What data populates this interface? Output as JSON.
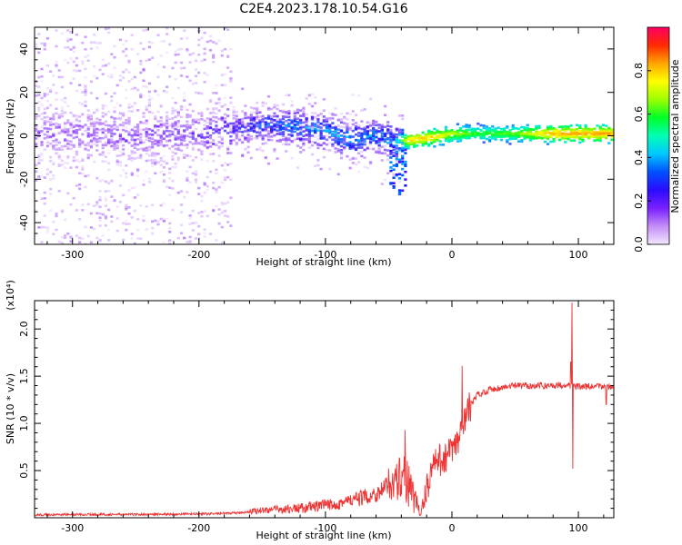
{
  "title": "C2E4.2023.178.10.54.G16",
  "chart_data": [
    {
      "type": "heatmap",
      "xlabel": "Height of straight line (km)",
      "ylabel": "Frequency (Hz)",
      "xlim": [
        -330,
        128
      ],
      "ylim": [
        -50,
        50
      ],
      "xticks": [
        -300,
        -200,
        -100,
        0,
        100
      ],
      "yticks": [
        -40,
        -20,
        0,
        20,
        40
      ],
      "colorbar": {
        "label": "Normalized spectral amplitude",
        "range": [
          0,
          1
        ],
        "ticks": [
          0.0,
          0.2,
          0.4,
          0.6,
          0.8
        ],
        "colors": [
          "#f4e8ff",
          "#c38df6",
          "#7a1fff",
          "#2a0cff",
          "#0050ff",
          "#00c8ff",
          "#00ffb4",
          "#00ff28",
          "#9cff00",
          "#ffff00",
          "#ffa500",
          "#ff2a00",
          "#ff0064"
        ]
      },
      "ridge": [
        {
          "x": -330,
          "f": 1,
          "a": 0.18
        },
        {
          "x": -300,
          "f": 1,
          "a": 0.18
        },
        {
          "x": -250,
          "f": 0,
          "a": 0.2
        },
        {
          "x": -200,
          "f": 1,
          "a": 0.22
        },
        {
          "x": -175,
          "f": 3,
          "a": 0.28
        },
        {
          "x": -150,
          "f": 5,
          "a": 0.35
        },
        {
          "x": -120,
          "f": 4,
          "a": 0.4
        },
        {
          "x": -100,
          "f": 2,
          "a": 0.42
        },
        {
          "x": -80,
          "f": -2,
          "a": 0.42
        },
        {
          "x": -60,
          "f": 0,
          "a": 0.4
        },
        {
          "x": -45,
          "f": -3,
          "a": 0.45
        },
        {
          "x": -35,
          "f": -2,
          "a": 0.8
        },
        {
          "x": -20,
          "f": -1,
          "a": 0.82
        },
        {
          "x": 0,
          "f": 1,
          "a": 0.7
        },
        {
          "x": 20,
          "f": 1,
          "a": 0.6
        },
        {
          "x": 50,
          "f": 1,
          "a": 0.65
        },
        {
          "x": 80,
          "f": 1,
          "a": 0.85
        },
        {
          "x": 128,
          "f": 1,
          "a": 0.85
        }
      ]
    },
    {
      "type": "line",
      "xlabel": "Height of straight line (km)",
      "ylabel": "SNR (10 * v/v)",
      "scale_label": "(x10⁴)",
      "xlim": [
        -330,
        128
      ],
      "ylim": [
        0,
        23000
      ],
      "xticks": [
        -300,
        -200,
        -100,
        0,
        100
      ],
      "yticks": [
        5000,
        10000,
        15000,
        20000
      ],
      "ytick_labels": [
        "0.5",
        "1.0",
        "1.5",
        "2.0"
      ],
      "color": "#ee3333",
      "series": [
        {
          "x": [
            -330,
            -300,
            -250,
            -200,
            -170,
            -150,
            -120,
            -100,
            -80,
            -60,
            -45,
            -38,
            -30,
            -25,
            -20,
            -15,
            -10,
            -5,
            0,
            5,
            10,
            15,
            20,
            30,
            40,
            50,
            60,
            70,
            80,
            90,
            95,
            100,
            110,
            120,
            128
          ],
          "y": [
            300,
            350,
            350,
            400,
            500,
            800,
            1000,
            1300,
            1800,
            2500,
            4000,
            5000,
            2500,
            600,
            3000,
            5500,
            6000,
            6500,
            7000,
            8000,
            10500,
            12000,
            13000,
            13600,
            13800,
            14000,
            14000,
            14000,
            14000,
            14100,
            14000,
            13900,
            13900,
            13900,
            13900
          ],
          "spikes": [
            {
              "x": -37,
              "y": 9300
            },
            {
              "x": -30,
              "y": 500
            },
            {
              "x": 8,
              "y": 16100
            },
            {
              "x": 94,
              "y": 16500
            },
            {
              "x": 95,
              "y": 22800
            },
            {
              "x": 95.5,
              "y": 5200
            },
            {
              "x": 122,
              "y": 12000
            }
          ]
        }
      ]
    }
  ]
}
